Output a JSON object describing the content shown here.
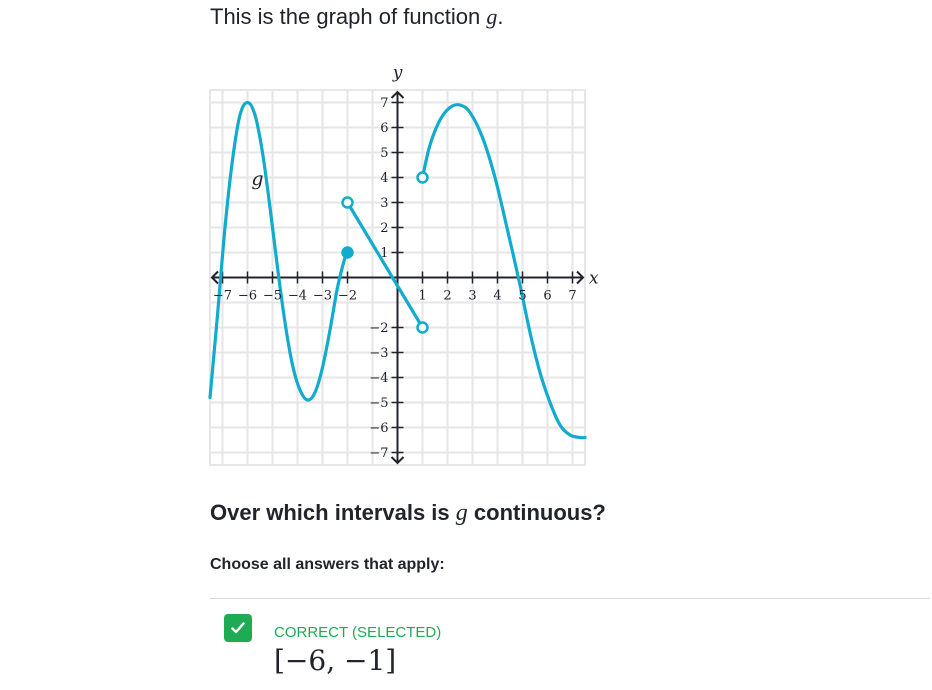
{
  "prompt": {
    "before": "This is the graph of function ",
    "fn": "g",
    "after": "."
  },
  "chart_data": {
    "type": "line",
    "function_label": "g",
    "xlabel": "x",
    "ylabel": "y",
    "xlim": [
      -7.5,
      7.5
    ],
    "ylim": [
      -7.5,
      7.5
    ],
    "grid": true,
    "x_ticks": [
      -7,
      -6,
      -5,
      -4,
      -3,
      -2,
      1,
      2,
      3,
      4,
      5,
      6,
      7
    ],
    "y_ticks": [
      -7,
      -6,
      -5,
      -4,
      -3,
      -2,
      1,
      2,
      3,
      4,
      5,
      6,
      7
    ],
    "color": "#11accd",
    "series": [
      {
        "points": [
          [
            -7.5,
            -4.8
          ],
          [
            -7.2,
            -1.5
          ],
          [
            -6.9,
            2.0
          ],
          [
            -6.6,
            4.7
          ],
          [
            -6.3,
            6.5
          ],
          [
            -6.0,
            7.0
          ],
          [
            -5.7,
            6.5
          ],
          [
            -5.4,
            5.0
          ],
          [
            -5.1,
            2.8
          ],
          [
            -4.8,
            0.4
          ],
          [
            -4.5,
            -1.8
          ],
          [
            -4.2,
            -3.5
          ],
          [
            -3.9,
            -4.5
          ],
          [
            -3.6,
            -4.9
          ],
          [
            -3.3,
            -4.6
          ],
          [
            -3.0,
            -3.6
          ],
          [
            -2.7,
            -2.1
          ],
          [
            -2.4,
            -0.4
          ],
          [
            -2.1,
            0.8
          ],
          [
            -2.0,
            1.0
          ]
        ]
      },
      {
        "points": [
          [
            -2.0,
            3.0
          ],
          [
            1.0,
            -2.0
          ]
        ]
      },
      {
        "points": [
          [
            1.0,
            4.0
          ],
          [
            1.3,
            5.3
          ],
          [
            1.7,
            6.3
          ],
          [
            2.1,
            6.8
          ],
          [
            2.5,
            6.9
          ],
          [
            2.9,
            6.6
          ],
          [
            3.4,
            5.6
          ],
          [
            3.9,
            4.0
          ],
          [
            4.4,
            1.9
          ],
          [
            4.9,
            -0.3
          ],
          [
            5.3,
            -2.2
          ],
          [
            5.7,
            -3.8
          ],
          [
            6.1,
            -5.0
          ],
          [
            6.5,
            -5.9
          ],
          [
            6.9,
            -6.3
          ],
          [
            7.3,
            -6.4
          ],
          [
            7.5,
            -6.4
          ]
        ]
      }
    ],
    "endpoints": [
      {
        "x": -2,
        "y": 1,
        "closed": true
      },
      {
        "x": -2,
        "y": 3,
        "closed": false
      },
      {
        "x": 1,
        "y": -2,
        "closed": false
      },
      {
        "x": 1,
        "y": 4,
        "closed": false
      }
    ]
  },
  "question": {
    "before": "Over which intervals is ",
    "fn": "g",
    "after": " continuous?"
  },
  "instruction": "Choose all answers that apply:",
  "answer": {
    "status": "CORRECT (SELECTED)",
    "interval": "[−6, −1]",
    "check_color": "#1fab54"
  }
}
